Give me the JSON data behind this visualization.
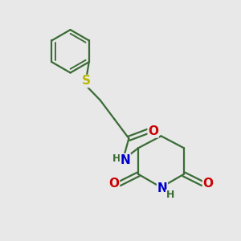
{
  "bg_color": "#e8e8e8",
  "bond_color": "#3a6b35",
  "bond_width": 1.6,
  "S_color": "#b8b800",
  "N_color": "#0000cc",
  "O_color": "#cc0000",
  "C_color": "#3a6b35",
  "font_size": 10,
  "fig_bg": "#e8e8e8",
  "xlim": [
    0,
    10
  ],
  "ylim": [
    0,
    10
  ]
}
